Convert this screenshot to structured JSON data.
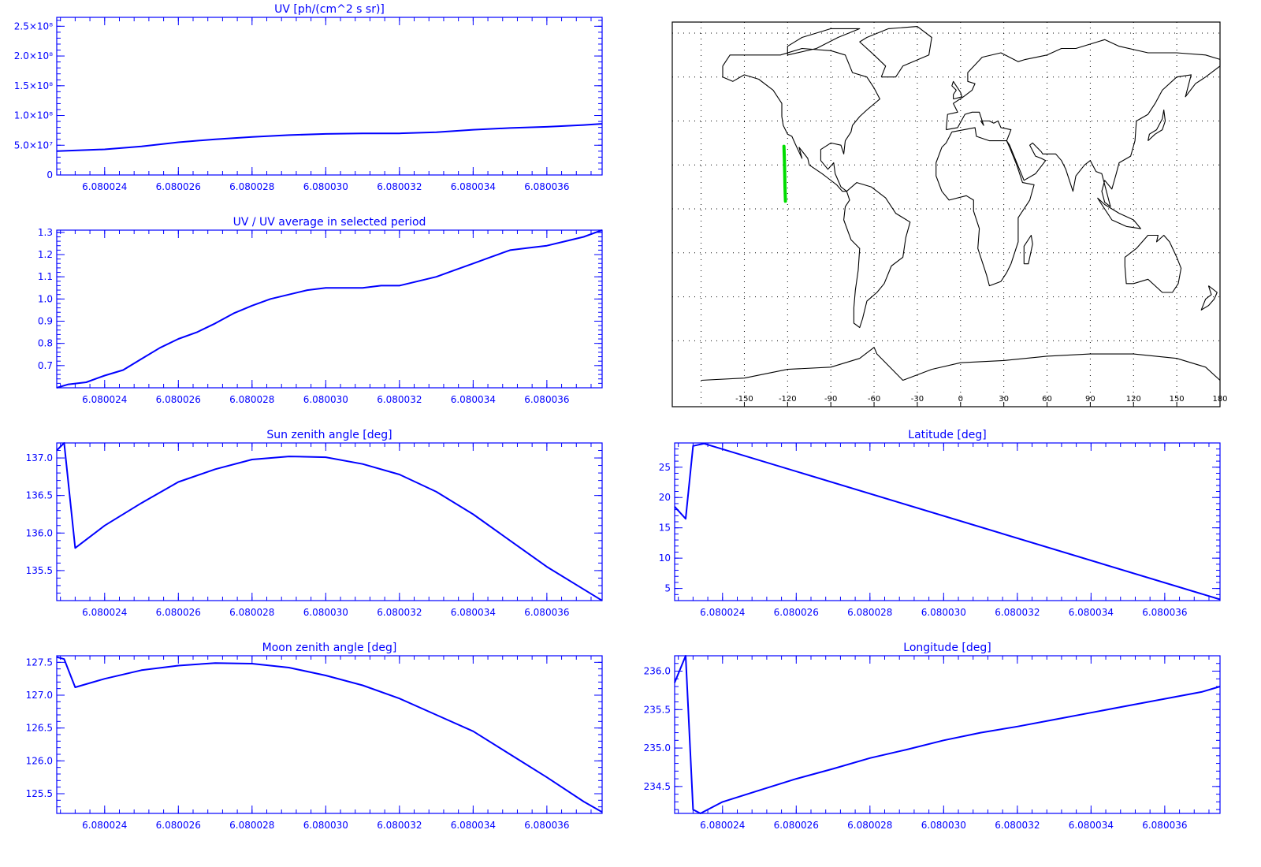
{
  "colors": {
    "axis": "#0000ff",
    "series": "#0000ff",
    "map_coast": "#000000",
    "map_grid": "#000000",
    "map_track": "#00dd00",
    "background": "#ffffff"
  },
  "x_ticks": [
    "6.080024",
    "6.080026",
    "6.080028",
    "6.080030",
    "6.080032",
    "6.080034",
    "6.080036"
  ],
  "map": {
    "lon_ticks": [
      "-150",
      "-120",
      "-90",
      "-60",
      "-30",
      "0",
      "30",
      "60",
      "90",
      "120",
      "150",
      "180"
    ]
  },
  "chart_data": [
    {
      "id": "uv",
      "type": "line",
      "title": "UV [ph/(cm^2 s sr)]",
      "xlim": [
        6.0800227,
        6.0800375
      ],
      "ylim": [
        0,
        265000000
      ],
      "yticks": [
        0,
        50000000,
        100000000,
        150000000,
        200000000,
        250000000
      ],
      "ytick_labels": [
        "0",
        "5.0×10⁷",
        "1.0×10⁸",
        "1.5×10⁸",
        "2.0×10⁸",
        "2.5×10⁸"
      ],
      "x": [
        6.0800227,
        6.080024,
        6.080025,
        6.080026,
        6.080027,
        6.080028,
        6.080029,
        6.08003,
        6.080031,
        6.080032,
        6.080033,
        6.080034,
        6.080035,
        6.080036,
        6.080037,
        6.0800375
      ],
      "y": [
        40000000,
        43000000,
        48000000,
        55000000,
        60000000,
        64000000,
        67000000,
        69000000,
        70000000,
        70000000,
        72000000,
        76000000,
        79000000,
        81000000,
        84000000,
        86000000
      ]
    },
    {
      "id": "ratio",
      "type": "line",
      "title": "UV / UV average in selected period",
      "xlim": [
        6.0800227,
        6.0800375
      ],
      "ylim": [
        0.6,
        1.31
      ],
      "yticks": [
        0.7,
        0.8,
        0.9,
        1.0,
        1.1,
        1.2,
        1.3
      ],
      "ytick_labels": [
        "0.7",
        "0.8",
        "0.9",
        "1.0",
        "1.1",
        "1.2",
        "1.3"
      ],
      "x": [
        6.0800227,
        6.080023,
        6.0800235,
        6.080024,
        6.0800245,
        6.080025,
        6.0800255,
        6.080026,
        6.0800265,
        6.080027,
        6.0800275,
        6.080028,
        6.0800285,
        6.080029,
        6.0800295,
        6.08003,
        6.0800305,
        6.080031,
        6.0800315,
        6.080032,
        6.0800325,
        6.080033,
        6.0800335,
        6.080034,
        6.0800345,
        6.080035,
        6.0800355,
        6.080036,
        6.0800365,
        6.080037,
        6.0800375
      ],
      "y": [
        0.6,
        0.615,
        0.625,
        0.655,
        0.68,
        0.73,
        0.78,
        0.82,
        0.85,
        0.89,
        0.935,
        0.97,
        1.0,
        1.02,
        1.04,
        1.05,
        1.05,
        1.05,
        1.06,
        1.06,
        1.08,
        1.1,
        1.13,
        1.16,
        1.19,
        1.22,
        1.23,
        1.24,
        1.26,
        1.28,
        1.31
      ]
    },
    {
      "id": "sza",
      "type": "line",
      "title": "Sun zenith angle [deg]",
      "xlim": [
        6.0800227,
        6.0800375
      ],
      "ylim": [
        135.1,
        137.2
      ],
      "yticks": [
        135.5,
        136.0,
        136.5,
        137.0
      ],
      "ytick_labels": [
        "135.5",
        "136.0",
        "136.5",
        "137.0"
      ],
      "x": [
        6.0800227,
        6.0800229,
        6.0800232,
        6.080024,
        6.080025,
        6.080026,
        6.080027,
        6.080028,
        6.080029,
        6.08003,
        6.080031,
        6.080032,
        6.080033,
        6.080034,
        6.080035,
        6.080036,
        6.080037,
        6.0800375
      ],
      "y": [
        137.1,
        137.2,
        135.8,
        136.1,
        136.4,
        136.68,
        136.85,
        136.98,
        137.02,
        137.01,
        136.92,
        136.78,
        136.55,
        136.25,
        135.9,
        135.55,
        135.25,
        135.1
      ]
    },
    {
      "id": "latitude",
      "type": "line",
      "title": "Latitude [deg]",
      "xlim": [
        6.0800227,
        6.0800375
      ],
      "ylim": [
        3,
        29
      ],
      "yticks": [
        5,
        10,
        15,
        20,
        25
      ],
      "ytick_labels": [
        "5",
        "10",
        "15",
        "20",
        "25"
      ],
      "x": [
        6.0800227,
        6.080023,
        6.0800232,
        6.0800235,
        6.0800375
      ],
      "y": [
        18.5,
        16.5,
        28.5,
        28.9,
        3.2
      ]
    },
    {
      "id": "mza",
      "type": "line",
      "title": "Moon zenith angle [deg]",
      "xlim": [
        6.0800227,
        6.0800375
      ],
      "ylim": [
        125.2,
        127.6
      ],
      "yticks": [
        125.5,
        126.0,
        126.5,
        127.0,
        127.5
      ],
      "ytick_labels": [
        "125.5",
        "126.0",
        "126.5",
        "127.0",
        "127.5"
      ],
      "x": [
        6.0800227,
        6.0800229,
        6.0800232,
        6.080024,
        6.080025,
        6.080026,
        6.080027,
        6.080028,
        6.080029,
        6.08003,
        6.080031,
        6.080032,
        6.080033,
        6.080034,
        6.080035,
        6.080036,
        6.080037,
        6.0800375
      ],
      "y": [
        127.58,
        127.55,
        127.12,
        127.25,
        127.38,
        127.45,
        127.49,
        127.48,
        127.42,
        127.3,
        127.15,
        126.95,
        126.7,
        126.45,
        126.1,
        125.75,
        125.38,
        125.22
      ]
    },
    {
      "id": "longitude",
      "type": "line",
      "title": "Longitude [deg]",
      "xlim": [
        6.0800227,
        6.0800375
      ],
      "ylim": [
        234.15,
        236.2
      ],
      "yticks": [
        234.5,
        235.0,
        235.5,
        236.0
      ],
      "ytick_labels": [
        "234.5",
        "235.0",
        "235.5",
        "236.0"
      ],
      "x": [
        6.0800227,
        6.080023,
        6.0800232,
        6.0800234,
        6.080024,
        6.080025,
        6.080026,
        6.080027,
        6.080028,
        6.080029,
        6.08003,
        6.080031,
        6.080032,
        6.080033,
        6.080034,
        6.080035,
        6.080036,
        6.080037,
        6.0800375
      ],
      "y": [
        235.85,
        236.2,
        234.2,
        234.15,
        234.3,
        234.45,
        234.6,
        234.73,
        234.87,
        234.98,
        235.1,
        235.2,
        235.28,
        235.37,
        235.46,
        235.55,
        235.64,
        235.73,
        235.8
      ]
    }
  ]
}
